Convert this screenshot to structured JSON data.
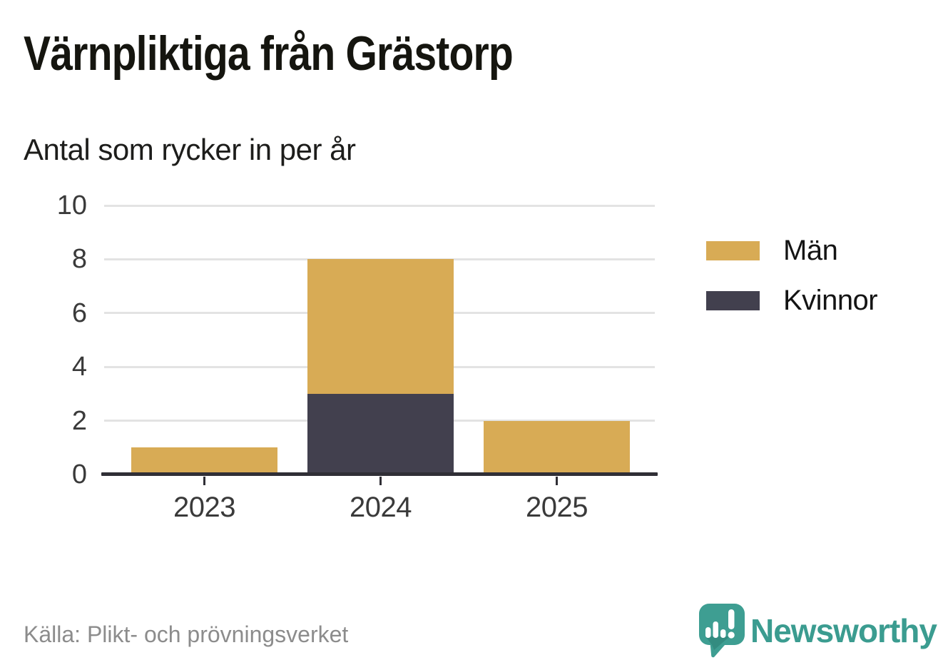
{
  "title": "Värnpliktiga från Grästorp",
  "subtitle": "Antal som rycker in per år",
  "source": "Källa: Plikt- och prövningsverket",
  "brand": {
    "name": "Newsworthy",
    "color": "#3b9c90"
  },
  "colors": {
    "men": "#d8ab55",
    "women": "#42404e",
    "axis": "#302f36",
    "gridline": "#e3e3e3",
    "tick_text": "#3a3a3a",
    "source_text": "#8c8c8c"
  },
  "chart_data": {
    "type": "bar",
    "stacked": true,
    "title": "Värnpliktiga från Grästorp",
    "subtitle": "Antal som rycker in per år",
    "categories": [
      "2023",
      "2024",
      "2025"
    ],
    "series": [
      {
        "name": "Män",
        "color": "#d8ab55",
        "values": [
          1,
          5,
          2
        ]
      },
      {
        "name": "Kvinnor",
        "color": "#42404e",
        "values": [
          0,
          3,
          0
        ]
      }
    ],
    "stack_order_bottom_to_top": [
      "Kvinnor",
      "Män"
    ],
    "totals": [
      1,
      8,
      2
    ],
    "xlabel": "",
    "ylabel": "",
    "ylim": [
      0,
      10
    ],
    "yticks": [
      0,
      2,
      4,
      6,
      8,
      10
    ],
    "grid": "horizontal",
    "legend_position": "right",
    "source": "Källa: Plikt- och prövningsverket"
  }
}
